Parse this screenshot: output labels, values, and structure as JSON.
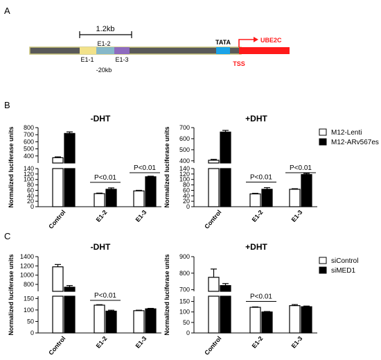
{
  "panel_labels": [
    "A",
    "B",
    "C"
  ],
  "schematic": {
    "scale_label": "1.2kb",
    "distance_label": "-20kb",
    "element_top_label": "E1-2",
    "element_bottom_labels": [
      "E1-1",
      "E1-3"
    ],
    "tata_label": "TATA",
    "gene_label": "UBE2C",
    "tss_label": "TSS",
    "colors": {
      "track": "#595959",
      "track_outline": "#c8c47a",
      "e1_1": "#f2e28a",
      "e1_2": "#86b8c9",
      "e1_3": "#8e6bbf",
      "tata": "#1aa3e8",
      "gene": "#ff1a1a"
    }
  },
  "chart_data": [
    {
      "type": "bar",
      "title": "-DHT",
      "ylabel": "Normalized luciferase units",
      "categories": [
        "Control",
        "E1-2",
        "E1-3"
      ],
      "broken_axis": {
        "lower": [
          0,
          140
        ],
        "upper": [
          300,
          800
        ]
      },
      "lower_ticks": [
        0,
        20,
        40,
        60,
        80,
        100,
        120,
        140
      ],
      "upper_ticks": [
        400,
        500,
        600,
        700,
        800
      ],
      "series": [
        {
          "name": "M12-Lenti",
          "values": [
            375,
            48,
            58
          ],
          "errors": [
            12,
            2,
            2
          ]
        },
        {
          "name": "M12-ARv567es",
          "values": [
            718,
            64,
            110
          ],
          "errors": [
            22,
            5,
            2
          ]
        }
      ],
      "annotations": [
        {
          "text": "P<0.01",
          "category": "E1-2"
        },
        {
          "text": "P<0.01",
          "category": "E1-3"
        }
      ]
    },
    {
      "type": "bar",
      "title": "+DHT",
      "ylabel": "Normalized luciferase units",
      "categories": [
        "Control",
        "E1-2",
        "E1-3"
      ],
      "broken_axis": {
        "lower": [
          0,
          140
        ],
        "upper": [
          380,
          700
        ]
      },
      "lower_ticks": [
        0,
        20,
        40,
        60,
        80,
        100,
        120,
        140
      ],
      "upper_ticks": [
        400,
        500,
        600,
        700
      ],
      "series": [
        {
          "name": "M12-Lenti",
          "values": [
            405,
            47,
            64
          ],
          "errors": [
            8,
            2,
            2
          ]
        },
        {
          "name": "M12-ARv567es",
          "values": [
            660,
            64,
            118
          ],
          "errors": [
            15,
            6,
            4
          ]
        }
      ],
      "annotations": [
        {
          "text": "P<0.01",
          "category": "E1-2"
        },
        {
          "text": "P<0.01",
          "category": "E1-3"
        }
      ]
    },
    {
      "type": "bar",
      "title": "-DHT",
      "ylabel": "Normalized luciferase units",
      "categories": [
        "Control",
        "E1-2",
        "E1-3"
      ],
      "broken_axis": {
        "lower": [
          0,
          160
        ],
        "upper": [
          650,
          1400
        ]
      },
      "lower_ticks": [
        0,
        50,
        100,
        150
      ],
      "upper_ticks": [
        800,
        1000,
        1200,
        1400
      ],
      "series": [
        {
          "name": "siControl",
          "values": [
            1180,
            121,
            97
          ],
          "errors": [
            50,
            2,
            2
          ]
        },
        {
          "name": "siMED1",
          "values": [
            740,
            95,
            105
          ],
          "errors": [
            35,
            4,
            2
          ]
        }
      ],
      "annotations": [
        {
          "text": "P<0.01",
          "category": "E1-2"
        }
      ]
    },
    {
      "type": "bar",
      "title": "+DHT",
      "ylabel": "Normalized luciferase units",
      "categories": [
        "Control",
        "E1-2",
        "E1-3"
      ],
      "broken_axis": {
        "lower": [
          0,
          175
        ],
        "upper": [
          690,
          900
        ]
      },
      "lower_ticks": [
        0,
        50,
        100,
        150
      ],
      "upper_ticks": [
        700,
        800,
        900
      ],
      "series": [
        {
          "name": "siControl",
          "values": [
            775,
            122,
            130
          ],
          "errors": [
            50,
            2,
            5
          ]
        },
        {
          "name": "siMED1",
          "values": [
            725,
            100,
            125
          ],
          "errors": [
            12,
            2,
            3
          ]
        }
      ],
      "annotations": [
        {
          "text": "P<0.01",
          "category": "E1-2"
        }
      ]
    }
  ],
  "legends": [
    {
      "entries": [
        "M12-Lenti",
        "M12-ARv567es"
      ]
    },
    {
      "entries": [
        "siControl",
        "siMED1"
      ]
    }
  ]
}
